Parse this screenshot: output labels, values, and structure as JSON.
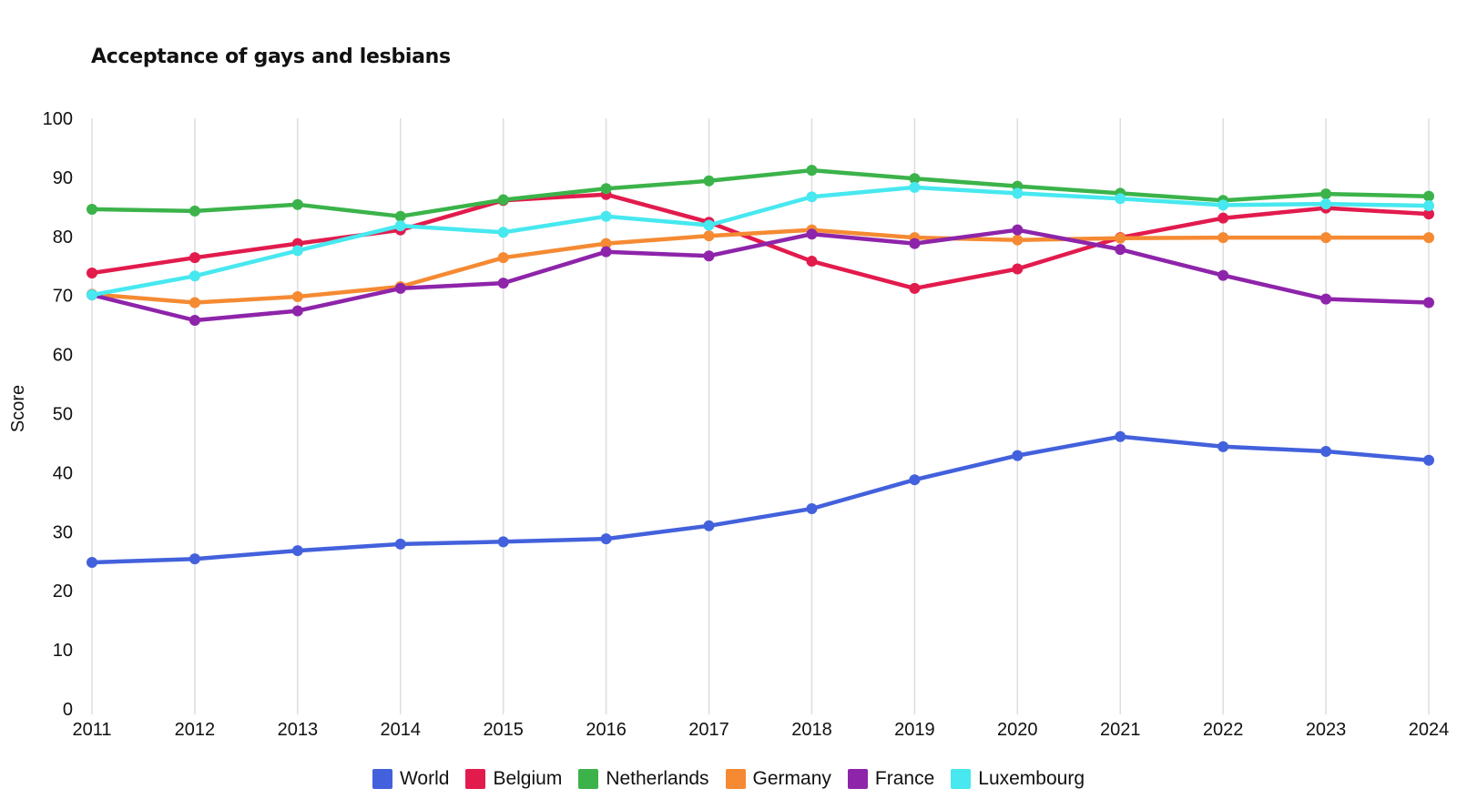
{
  "chart_data": {
    "type": "line",
    "title": "Acceptance of gays and lesbians",
    "xlabel": "",
    "ylabel": "Score",
    "ylim": [
      0,
      100
    ],
    "yticks": [
      0,
      10,
      20,
      30,
      40,
      50,
      60,
      70,
      80,
      90,
      100
    ],
    "x": [
      2011,
      2012,
      2013,
      2014,
      2015,
      2016,
      2017,
      2018,
      2019,
      2020,
      2021,
      2022,
      2023,
      2024
    ],
    "grid": "vertical",
    "legend_position": "bottom",
    "series": [
      {
        "name": "World",
        "color": "#4361dc",
        "values": [
          24.8,
          25.4,
          26.8,
          27.9,
          28.3,
          28.8,
          31.0,
          33.9,
          38.8,
          42.9,
          46.1,
          44.4,
          43.6,
          42.1
        ]
      },
      {
        "name": "Belgium",
        "color": "#e21b4d",
        "values": [
          73.8,
          76.4,
          78.8,
          81.1,
          86.1,
          87.1,
          82.4,
          75.8,
          71.2,
          74.5,
          79.8,
          83.1,
          84.8,
          83.8
        ]
      },
      {
        "name": "Netherlands",
        "color": "#3bb34a",
        "values": [
          84.6,
          84.3,
          85.4,
          83.4,
          86.2,
          88.1,
          89.4,
          91.2,
          89.8,
          88.5,
          87.3,
          86.1,
          87.2,
          86.8
        ]
      },
      {
        "name": "Germany",
        "color": "#f58a33",
        "values": [
          70.2,
          68.8,
          69.8,
          71.5,
          76.4,
          78.8,
          80.1,
          81.1,
          79.8,
          79.4,
          79.7,
          79.8,
          79.8,
          79.8
        ]
      },
      {
        "name": "France",
        "color": "#8e24aa",
        "values": [
          70.1,
          65.8,
          67.4,
          71.2,
          72.1,
          77.4,
          76.7,
          80.4,
          78.8,
          81.1,
          77.8,
          73.4,
          69.4,
          68.8
        ]
      },
      {
        "name": "Luxembourg",
        "color": "#47e8ef",
        "values": [
          70.1,
          73.3,
          77.6,
          81.8,
          80.7,
          83.4,
          81.9,
          86.7,
          88.3,
          87.3,
          86.4,
          85.3,
          85.5,
          85.2
        ]
      }
    ]
  }
}
